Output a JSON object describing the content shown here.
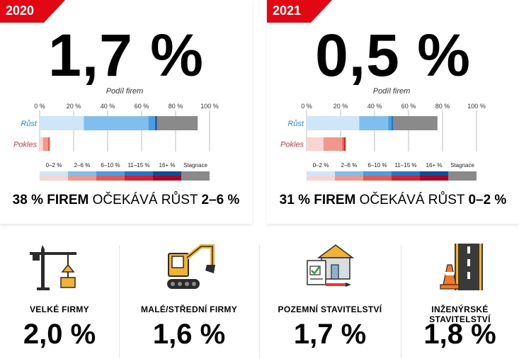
{
  "panels": [
    {
      "year": "2020",
      "big_value": "1,7 %",
      "headline": {
        "pct": "38 %",
        "firem": "FIREM",
        "mid": "OČEKÁVÁ RŮST",
        "range": "2–6 %"
      }
    },
    {
      "year": "2021",
      "big_value": "0,5 %",
      "headline": {
        "pct": "31 %",
        "firem": "FIREM",
        "mid": "OČEKÁVÁ RŮST",
        "range": "0–2 %"
      }
    }
  ],
  "chart_data": [
    {
      "type": "bar",
      "stacked": true,
      "orientation": "horizontal",
      "title": "Podíl firem",
      "categories": [
        "Růst",
        "Pokles"
      ],
      "x_ticks": [
        "0 %",
        "20 %",
        "40 %",
        "60 %",
        "80 %",
        "100 %"
      ],
      "xlim": [
        0,
        100
      ],
      "series": [
        {
          "name": "0–2 %",
          "values": [
            26,
            2
          ]
        },
        {
          "name": "2–6 %",
          "values": [
            38,
            3
          ]
        },
        {
          "name": "6–10 %",
          "values": [
            4,
            1
          ]
        },
        {
          "name": "11–15 %",
          "values": [
            0,
            0
          ]
        },
        {
          "name": "16+ %",
          "values": [
            1,
            0
          ]
        },
        {
          "name": "Stagnace",
          "values": [
            24,
            0
          ]
        }
      ],
      "legend": [
        "0–2 %",
        "2–6 %",
        "6–10 %",
        "11–15 %",
        "16+ %",
        "Stagnace"
      ]
    },
    {
      "type": "bar",
      "stacked": true,
      "orientation": "horizontal",
      "title": "Podíl firem",
      "categories": [
        "Růst",
        "Pokles"
      ],
      "x_ticks": [
        "0 %",
        "20 %",
        "40 %",
        "60 %",
        "80 %",
        "100 %"
      ],
      "xlim": [
        0,
        100
      ],
      "series": [
        {
          "name": "0–2 %",
          "values": [
            31,
            10
          ]
        },
        {
          "name": "2–6 %",
          "values": [
            17,
            11
          ]
        },
        {
          "name": "6–10 %",
          "values": [
            2,
            1
          ]
        },
        {
          "name": "11–15 %",
          "values": [
            1,
            1
          ]
        },
        {
          "name": "16+ %",
          "values": [
            0,
            0
          ]
        },
        {
          "name": "Stagnace",
          "values": [
            26,
            0
          ]
        }
      ],
      "legend": [
        "0–2 %",
        "2–6 %",
        "6–10 %",
        "11–15 %",
        "16+ %",
        "Stagnace"
      ]
    }
  ],
  "colors": {
    "accent_red": "#e30613",
    "grow": [
      "#cfe6f8",
      "#7fbfef",
      "#4a9ee6",
      "#1f78c8",
      "#0a4f9e"
    ],
    "decline": [
      "#fad4d0",
      "#f3978d",
      "#e85a4f",
      "#d9202a",
      "#b3001b"
    ],
    "stagnation": "#8a8a8a",
    "legend_top": [
      "#cfe6f8",
      "#7fbfef",
      "#4a9ee6",
      "#1f78c8",
      "#0a4f9e",
      "#8a8a8a"
    ],
    "legend_bottom": [
      "#fad4d0",
      "#f3978d",
      "#e85a4f",
      "#d9202a",
      "#b3001b",
      "#8a8a8a"
    ],
    "label_grow": "#2a8fd6",
    "label_decline": "#e03a3a"
  },
  "categories": [
    {
      "name": "VELKÉ FIRMY",
      "value": "2,0 %",
      "icon": "tower-crane-icon"
    },
    {
      "name": "MALÉ/STŘEDNÍ FIRMY",
      "value": "1,6 %",
      "icon": "excavator-icon"
    },
    {
      "name": "POZEMNÍ STAVITELSTVÍ",
      "value": "1,7 %",
      "icon": "building-plan-icon"
    },
    {
      "name": "INŽENÝRSKÉ STAVITELSTVÍ",
      "value": "1,8 %",
      "icon": "road-cone-icon"
    }
  ]
}
